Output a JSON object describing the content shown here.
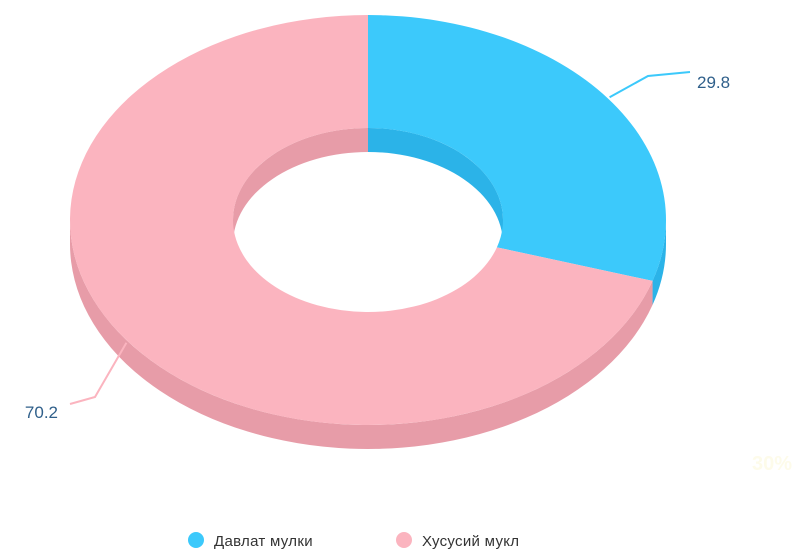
{
  "chart_data": {
    "type": "pie",
    "donut": true,
    "three_d": true,
    "categories": [
      "Давлат мулки",
      "Хусусий мукл"
    ],
    "values": [
      29.8,
      70.2
    ],
    "colors": [
      "#3cc9fb",
      "#fbb4bf"
    ],
    "side_colors": [
      "#2bb3e8",
      "#e79ca8"
    ],
    "data_labels": [
      "29.8",
      "70.2"
    ],
    "legend_position": "bottom-center"
  },
  "watermark": "30%"
}
